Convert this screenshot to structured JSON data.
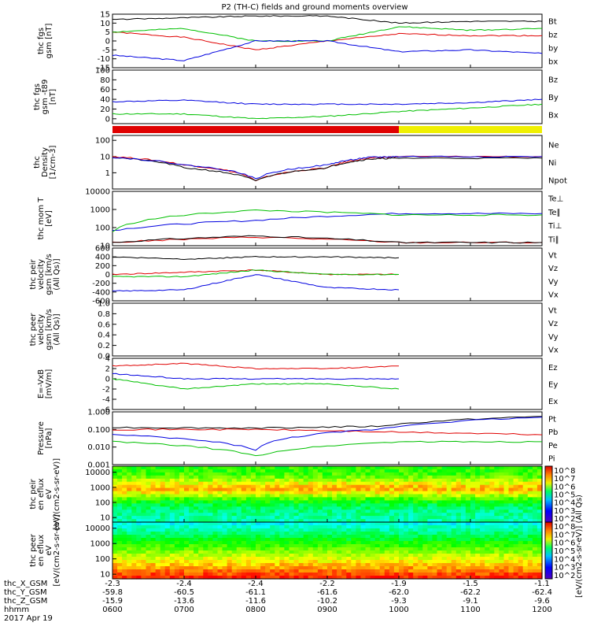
{
  "title": "P2 (TH-C) fields and ground moments overview",
  "footer": {
    "date": "2017 Apr 19",
    "rows": [
      {
        "label": "thc_X_GSM",
        "values": [
          "-2.3",
          "-2.4",
          "-2.4",
          "-2.2",
          "-1.9",
          "-1.5",
          "-1.1"
        ]
      },
      {
        "label": "thc_Y_GSM",
        "values": [
          "-59.8",
          "-60.5",
          "-61.1",
          "-61.6",
          "-62.0",
          "-62.2",
          "-62.4"
        ]
      },
      {
        "label": "thc_Z_GSM",
        "values": [
          "-15.9",
          "-13.6",
          "-11.6",
          "-10.2",
          "-9.3",
          "-9.1",
          "-9.6"
        ]
      },
      {
        "label": "hhmm",
        "values": [
          "0600",
          "0700",
          "0800",
          "0900",
          "1000",
          "1100",
          "1200"
        ]
      }
    ]
  },
  "colorbar": {
    "label": "[eV/(cm2-s-sr-eV)] (All Qs)",
    "upper_ticks": [
      "10^8",
      "10^7",
      "10^6",
      "10^5",
      "10^4",
      "10^3",
      "10^2"
    ],
    "lower_ticks": [
      "10^8",
      "10^7",
      "10^6",
      "10^5",
      "10^4",
      "10^3",
      "10^2"
    ]
  },
  "colors": {
    "black": "#000000",
    "red": "#e00000",
    "green": "#00c000",
    "blue": "#0000e0",
    "yellow": "#f0f000"
  },
  "chart_data": [
    {
      "type": "line",
      "ylabel": "thc fgs gsm [nT]",
      "ylim": [
        -15,
        15
      ],
      "ticks": [
        "15",
        "10",
        "5",
        "0",
        "-5",
        "-10",
        "-15"
      ],
      "series": [
        {
          "name": "Bt",
          "color": "black",
          "x_hours": [
            6,
            7,
            8,
            9,
            10,
            11,
            12
          ],
          "values": [
            12,
            13,
            14,
            14,
            10,
            11,
            11
          ]
        },
        {
          "name": "bz",
          "color": "red",
          "x_hours": [
            6,
            7,
            8,
            9,
            10,
            11,
            12
          ],
          "values": [
            5,
            2,
            -5,
            0,
            4,
            3,
            3
          ]
        },
        {
          "name": "by",
          "color": "green",
          "x_hours": [
            6,
            7,
            8,
            9,
            10,
            11,
            12
          ],
          "values": [
            5,
            7,
            0,
            0,
            8,
            6,
            7
          ]
        },
        {
          "name": "bx",
          "color": "blue",
          "x_hours": [
            6,
            7,
            8,
            9,
            10,
            11,
            12
          ],
          "values": [
            -8,
            -11,
            0,
            0,
            -6,
            -5,
            -7
          ]
        }
      ]
    },
    {
      "type": "line",
      "ylabel": "thc fgs gsm -t89 [nT]",
      "ylim": [
        -10,
        100
      ],
      "ticks": [
        "100",
        "80",
        "60",
        "40",
        "20",
        "0"
      ],
      "series": [
        {
          "name": "Bz",
          "color": "red",
          "x_hours": [
            6,
            12
          ],
          "values": [
            null,
            null
          ]
        },
        {
          "name": "By",
          "color": "green",
          "x_hours": [
            6,
            7,
            8,
            9,
            10,
            11,
            12
          ],
          "values": [
            10,
            10,
            0,
            5,
            15,
            22,
            30
          ]
        },
        {
          "name": "Bx",
          "color": "blue",
          "x_hours": [
            6,
            7,
            8,
            9,
            10,
            11,
            12
          ],
          "values": [
            35,
            38,
            30,
            30,
            30,
            33,
            40
          ]
        }
      ]
    },
    {
      "type": "line",
      "ylabel": "thc Density [1/cm-3]",
      "yscale": "log",
      "ylim": [
        0.1,
        200
      ],
      "ticks": [
        "100",
        "10",
        "1"
      ],
      "series": [
        {
          "name": "Ne",
          "color": "red",
          "x_hours": [
            6,
            7,
            8,
            9,
            9.6,
            10,
            12
          ],
          "values": [
            10,
            3,
            0.3,
            2,
            8,
            10,
            10
          ]
        },
        {
          "name": "Ni",
          "color": "black",
          "x_hours": [
            6,
            7,
            8,
            9,
            9.6,
            10,
            12
          ],
          "values": [
            9,
            2,
            0.3,
            2,
            7,
            8,
            8
          ]
        },
        {
          "name": "Npot",
          "color": "blue",
          "x_hours": [
            6,
            7,
            8,
            9,
            9.6,
            10,
            12
          ],
          "values": [
            9,
            3,
            0.4,
            3,
            9,
            10,
            10
          ]
        }
      ]
    },
    {
      "type": "line",
      "ylabel": "thc mom T [eV]",
      "yscale": "log",
      "ylim": [
        10,
        10000
      ],
      "ticks": [
        "10000",
        "1000",
        "100",
        "10"
      ],
      "series": [
        {
          "name": "Te⊥",
          "color": "red",
          "x_hours": [
            6,
            8,
            10,
            12
          ],
          "values": [
            15,
            30,
            15,
            15
          ]
        },
        {
          "name": "Te∥",
          "color": "black",
          "x_hours": [
            6,
            8,
            10,
            12
          ],
          "values": [
            15,
            35,
            15,
            15
          ]
        },
        {
          "name": "Ti⊥",
          "color": "blue",
          "x_hours": [
            6,
            8,
            10,
            12
          ],
          "values": [
            70,
            250,
            600,
            600
          ]
        },
        {
          "name": "Ti∥",
          "color": "green",
          "x_hours": [
            6,
            8,
            10,
            12
          ],
          "values": [
            60,
            900,
            500,
            500
          ]
        }
      ]
    },
    {
      "type": "line",
      "ylabel": "thc peir velocity gsm [km/s (All Qs)]",
      "ylim": [
        -600,
        600
      ],
      "ticks": [
        "600",
        "400",
        "200",
        "0",
        "-200",
        "-400",
        "-600"
      ],
      "series": [
        {
          "name": "Vt",
          "color": "black",
          "x_hours": [
            6,
            7,
            8,
            9,
            10
          ],
          "values": [
            400,
            350,
            400,
            400,
            380
          ]
        },
        {
          "name": "Vz",
          "color": "red",
          "x_hours": [
            6,
            7,
            8,
            9,
            10
          ],
          "values": [
            0,
            50,
            100,
            0,
            0
          ]
        },
        {
          "name": "Vy",
          "color": "green",
          "x_hours": [
            6,
            7,
            8,
            9,
            10
          ],
          "values": [
            -50,
            -50,
            100,
            0,
            0
          ]
        },
        {
          "name": "Vx",
          "color": "blue",
          "x_hours": [
            6,
            7,
            8,
            9,
            10
          ],
          "values": [
            -380,
            -350,
            0,
            -300,
            -350
          ]
        }
      ]
    },
    {
      "type": "line",
      "ylabel": "thc peer velocity gsm [km/s (All Qs)]",
      "ylim": [
        0,
        1
      ],
      "ticks": [
        "1.0",
        "0.8",
        "0.6",
        "0.4",
        "0.2",
        "0.0"
      ],
      "series": [
        {
          "name": "Vt",
          "color": "black",
          "values": []
        },
        {
          "name": "Vz",
          "color": "red",
          "values": []
        },
        {
          "name": "Vy",
          "color": "green",
          "values": []
        },
        {
          "name": "Vx",
          "color": "blue",
          "values": []
        }
      ]
    },
    {
      "type": "line",
      "ylabel": "E=-VxB [mV/m]",
      "ylim": [
        -6,
        4
      ],
      "ticks": [
        "4",
        "2",
        "0",
        "-2",
        "-4",
        "-6"
      ],
      "series": [
        {
          "name": "Ez",
          "color": "red",
          "x_hours": [
            6,
            7,
            8,
            9,
            10
          ],
          "values": [
            2.5,
            3,
            2,
            2,
            2.5
          ]
        },
        {
          "name": "Ey",
          "color": "green",
          "x_hours": [
            6,
            7,
            8,
            9,
            10
          ],
          "values": [
            0,
            -2,
            -1,
            -1,
            -2
          ]
        },
        {
          "name": "Ex",
          "color": "blue",
          "x_hours": [
            6,
            7,
            8,
            9,
            10
          ],
          "values": [
            1,
            0,
            0,
            0,
            0
          ]
        }
      ]
    },
    {
      "type": "line",
      "ylabel": "Pressure [nPa]",
      "yscale": "log",
      "ylim": [
        0.001,
        1
      ],
      "ticks": [
        "1.000",
        "0.100",
        "0.010",
        "0.001"
      ],
      "series": [
        {
          "name": "Pt",
          "color": "black",
          "x_hours": [
            6,
            8,
            9.7,
            12
          ],
          "values": [
            0.13,
            0.12,
            0.15,
            0.55
          ]
        },
        {
          "name": "Pb",
          "color": "red",
          "x_hours": [
            6,
            8,
            10,
            12
          ],
          "values": [
            0.1,
            0.1,
            0.07,
            0.05
          ]
        },
        {
          "name": "Pe",
          "color": "green",
          "x_hours": [
            6,
            8,
            10,
            12
          ],
          "values": [
            0.02,
            0.003,
            0.02,
            0.02
          ]
        },
        {
          "name": "Pi",
          "color": "blue",
          "x_hours": [
            6,
            8,
            9.7,
            12
          ],
          "values": [
            0.05,
            0.007,
            0.1,
            0.5
          ]
        }
      ]
    },
    {
      "type": "heatmap",
      "ylabel": "thc peir en eflux eV [eV/(cm2-s-sr-eV)]",
      "yscale": "log",
      "ylim": [
        5,
        25000
      ],
      "ticks": [
        "10000",
        "1000",
        "100",
        "10"
      ]
    },
    {
      "type": "heatmap",
      "ylabel": "thc peer en eflux eV [eV/(cm2-s-sr-eV)]",
      "yscale": "log",
      "ylim": [
        5,
        25000
      ],
      "ticks": [
        "10000",
        "1000",
        "100",
        "10"
      ]
    }
  ],
  "mode_bar": {
    "segments": [
      {
        "from_hour": 6,
        "to_hour": 10,
        "color": "red"
      },
      {
        "from_hour": 10,
        "to_hour": 12,
        "color": "yellow"
      }
    ]
  }
}
